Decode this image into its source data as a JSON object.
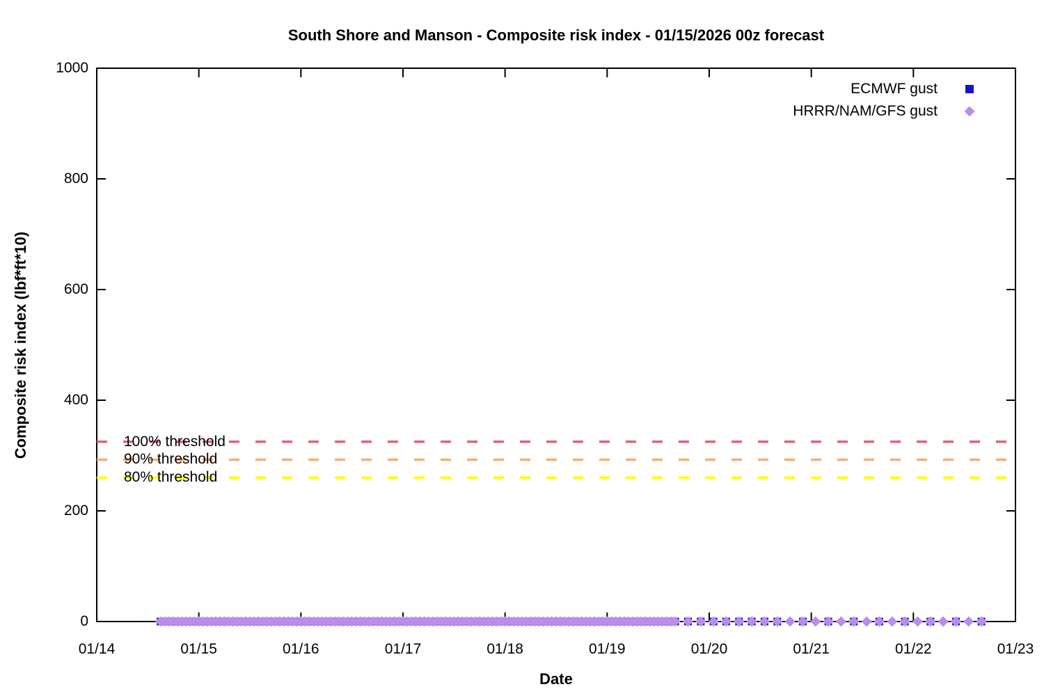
{
  "chart_data": {
    "type": "scatter",
    "title": "South Shore and Manson - Composite risk index - 01/15/2026 00z forecast",
    "xlabel": "Date",
    "ylabel": "Composite risk index (lbf*ft*10)",
    "x_tick_labels": [
      "01/14",
      "01/15",
      "01/16",
      "01/17",
      "01/18",
      "01/19",
      "01/20",
      "01/21",
      "01/22",
      "01/23"
    ],
    "x_axis_span_hours": 216,
    "ylim": [
      0,
      1000
    ],
    "y_ticks": [
      0,
      200,
      400,
      600,
      800,
      1000
    ],
    "grid": false,
    "legend_position": "top-right-inside",
    "series": [
      {
        "name": "ECMWF gust",
        "marker": "square",
        "color": "#1515c8",
        "y_value": 0,
        "hours_from_01_14_00z": [
          {
            "start": 15,
            "end": 136,
            "step": 1
          },
          {
            "start": 139,
            "end": 160,
            "step": 3
          },
          {
            "start": 166,
            "end": 208,
            "step": 6
          }
        ]
      },
      {
        "name": "HRRR/NAM/GFS gust",
        "marker": "diamond",
        "color": "#b98cee",
        "y_value": 0,
        "hours_from_01_14_00z": [
          {
            "start": 15,
            "end": 136,
            "step": 1
          },
          {
            "start": 139,
            "end": 208,
            "step": 3
          }
        ]
      }
    ],
    "thresholds": [
      {
        "label": "100% threshold",
        "value": 325,
        "color": "#e0627a"
      },
      {
        "label": "90% threshold",
        "value": 292.5,
        "color": "#f5af6e"
      },
      {
        "label": "80% threshold",
        "value": 260,
        "color": "#ffff00"
      }
    ],
    "frame_color": "#000000"
  }
}
